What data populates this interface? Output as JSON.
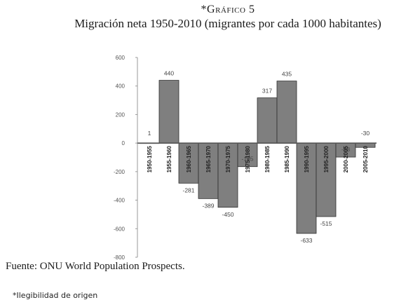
{
  "header": {
    "ref": "*Gráfico 5",
    "title": "Migración neta 1950-2010 (migrantes por cada 1000 habitantes)"
  },
  "chart_data": {
    "type": "bar",
    "title": "Migración neta 1950-2010 (migrantes por cada 1000 habitantes)",
    "xlabel": "",
    "ylabel": "",
    "ylim": [
      -800,
      600
    ],
    "yticks": [
      600,
      400,
      200,
      0,
      -200,
      -400,
      -600,
      -800
    ],
    "grid": false,
    "legend": "none",
    "categories": [
      "1950-1955",
      "1955-1960",
      "1960-1965",
      "1965-1970",
      "1970-1975",
      "1975-1980",
      "1980-1985",
      "1985-1990",
      "1990-1995",
      "1995-2000",
      "2000-2005",
      "2005-2010"
    ],
    "values": [
      1,
      440,
      -281,
      -389,
      -450,
      -165,
      317,
      435,
      -633,
      -515,
      -98,
      -30
    ],
    "data_labels": [
      "1",
      "440",
      "-281",
      "-389",
      "-450",
      "-165",
      "317",
      "435",
      "-633",
      "-515",
      "-98",
      "-30"
    ],
    "bar_color": "#7f7f7f"
  },
  "footer": {
    "source": "Fuente: ONU World Population Prospects.",
    "note": "*Ilegibilidad de origen"
  }
}
